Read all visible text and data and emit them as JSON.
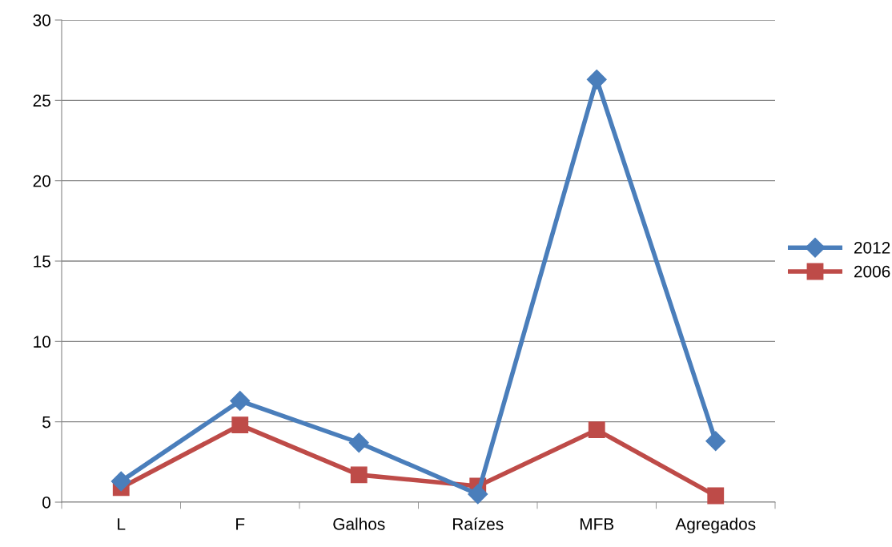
{
  "chart_data": {
    "type": "line",
    "categories": [
      "L",
      "F",
      "Galhos",
      "Raízes",
      "MFB",
      "Agregados"
    ],
    "series": [
      {
        "name": "2012",
        "color": "#4a7ebb",
        "marker": "diamond",
        "values": [
          1.3,
          6.3,
          3.7,
          0.5,
          26.3,
          3.8
        ]
      },
      {
        "name": "2006",
        "color": "#be4b48",
        "marker": "square",
        "values": [
          0.9,
          4.8,
          1.7,
          1.0,
          4.5,
          0.4
        ]
      }
    ],
    "ylim": [
      0,
      30
    ],
    "yticks": [
      0,
      5,
      10,
      15,
      20,
      25,
      30
    ],
    "grid": "y",
    "legend": "right",
    "line_style": "solid"
  }
}
